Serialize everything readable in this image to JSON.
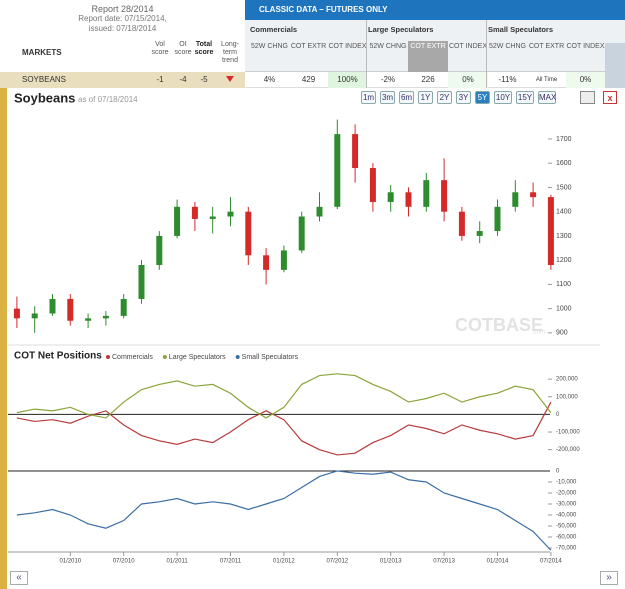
{
  "report": {
    "title": "Report 28/2014",
    "date": "Report date: 07/15/2014,",
    "issued": "issued: 07/18/2014"
  },
  "table": {
    "markets": "MARKETS",
    "left_headers": [
      "Vol score",
      "OI score",
      "Total score",
      "Long-term trend"
    ],
    "banner": "CLASSIC DATA – FUTURES ONLY",
    "groups": [
      "Commercials",
      "Large Speculators",
      "Small Speculators"
    ],
    "col_headers": [
      "52W CHNG",
      "COT EXTR",
      "COT INDEX",
      "52W CHNG",
      "COT EXTR",
      "COT INDEX",
      "52W CHNG",
      "COT EXTR",
      "COT INDEX"
    ],
    "row": {
      "market": "SOYBEANS",
      "scores": [
        "-1",
        "-4",
        "-5"
      ],
      "cells": [
        "4%",
        "429",
        "100%",
        "-2%",
        "226",
        "0%",
        "-11%",
        "All Time",
        "0%"
      ]
    }
  },
  "price_chart": {
    "type": "candlestick",
    "title": "Soybeans",
    "subtitle": "as of 07/18/2014",
    "ranges": [
      "1m",
      "3m",
      "6m",
      "1Y",
      "2Y",
      "3Y",
      "5Y",
      "10Y",
      "15Y",
      "MAX"
    ],
    "active_range": "5Y",
    "close_button": "x",
    "watermark": "COTBASE",
    "watermark_suffix": ".com",
    "up_color": "#2e8b2e",
    "down_color": "#d42a2a",
    "ylim": [
      850,
      1840
    ],
    "yticks": [
      900,
      1000,
      1100,
      1200,
      1300,
      1400,
      1500,
      1600,
      1700
    ],
    "candles": [
      [
        1000,
        1050,
        920,
        960
      ],
      [
        960,
        1010,
        900,
        980
      ],
      [
        980,
        1060,
        970,
        1040
      ],
      [
        1040,
        1060,
        930,
        950
      ],
      [
        950,
        980,
        920,
        960
      ],
      [
        960,
        990,
        930,
        970
      ],
      [
        970,
        1060,
        960,
        1040
      ],
      [
        1040,
        1200,
        1020,
        1180
      ],
      [
        1180,
        1320,
        1160,
        1300
      ],
      [
        1300,
        1450,
        1290,
        1420
      ],
      [
        1420,
        1440,
        1320,
        1370
      ],
      [
        1370,
        1420,
        1310,
        1380
      ],
      [
        1380,
        1460,
        1340,
        1400
      ],
      [
        1400,
        1420,
        1180,
        1220
      ],
      [
        1220,
        1250,
        1100,
        1160
      ],
      [
        1160,
        1260,
        1150,
        1240
      ],
      [
        1240,
        1400,
        1230,
        1380
      ],
      [
        1380,
        1480,
        1360,
        1420
      ],
      [
        1420,
        1780,
        1410,
        1720
      ],
      [
        1720,
        1760,
        1520,
        1580
      ],
      [
        1580,
        1600,
        1400,
        1440
      ],
      [
        1440,
        1510,
        1400,
        1480
      ],
      [
        1480,
        1500,
        1380,
        1420
      ],
      [
        1420,
        1560,
        1400,
        1530
      ],
      [
        1530,
        1620,
        1360,
        1400
      ],
      [
        1400,
        1420,
        1280,
        1300
      ],
      [
        1300,
        1360,
        1270,
        1320
      ],
      [
        1320,
        1450,
        1300,
        1420
      ],
      [
        1420,
        1530,
        1400,
        1480
      ],
      [
        1480,
        1520,
        1420,
        1460
      ],
      [
        1460,
        1470,
        1160,
        1180
      ]
    ]
  },
  "cot_chart": {
    "type": "line",
    "title": "COT Net Positions",
    "xticks": [
      "01/2010",
      "07/2010",
      "01/2011",
      "07/2011",
      "01/2012",
      "07/2012",
      "01/2013",
      "07/2013",
      "01/2014",
      "07/2014"
    ],
    "ylim": [
      -270000,
      280000
    ],
    "yticks": [
      {
        "value": 200000,
        "label": "200,000"
      },
      {
        "value": 100000,
        "label": "100,000"
      },
      0,
      {
        "value": -100000,
        "label": "-100,000"
      },
      {
        "value": -200000,
        "label": "-200,000"
      }
    ],
    "y2lim": [
      -73600,
      3600
    ],
    "y2ticks": [
      0,
      {
        "value": -10000,
        "label": "-10,000"
      },
      {
        "value": -20000,
        "label": "-20,000"
      },
      {
        "value": -30000,
        "label": "-30,000"
      },
      {
        "value": -40000,
        "label": "-40,000"
      },
      {
        "value": -50000,
        "label": "-50,000"
      },
      {
        "value": -60000,
        "label": "-60,000"
      },
      {
        "value": -70000,
        "label": "-70,000"
      }
    ],
    "series": [
      {
        "name": "Commercials",
        "color": "#b83a3a",
        "values": [
          -20000,
          -40000,
          -30000,
          -50000,
          -10000,
          20000,
          -60000,
          -120000,
          -150000,
          -170000,
          -140000,
          -160000,
          -100000,
          -30000,
          20000,
          -30000,
          -150000,
          -200000,
          -230000,
          -220000,
          -160000,
          -120000,
          -60000,
          -80000,
          -110000,
          -60000,
          -90000,
          -110000,
          -140000,
          -120000,
          70000
        ]
      },
      {
        "name": "Large Speculators",
        "color": "#8aa43a",
        "values": [
          10000,
          30000,
          20000,
          40000,
          0,
          -20000,
          70000,
          140000,
          170000,
          190000,
          160000,
          170000,
          120000,
          40000,
          -20000,
          40000,
          170000,
          220000,
          230000,
          220000,
          170000,
          130000,
          70000,
          90000,
          120000,
          70000,
          100000,
          120000,
          160000,
          140000,
          10000
        ]
      },
      {
        "name": "Small Speculators",
        "color": "#3a6ea5",
        "axis": "y2",
        "values": [
          -40000,
          -38000,
          -35000,
          -40000,
          -48000,
          -52000,
          -45000,
          -30000,
          -28000,
          -25000,
          -30000,
          -28000,
          -30000,
          -35000,
          -30000,
          -25000,
          -15000,
          -5000,
          0,
          -2000,
          -3000,
          -1000,
          -8000,
          -10000,
          -20000,
          -25000,
          -30000,
          -35000,
          -45000,
          -55000,
          -72000
        ]
      }
    ]
  },
  "nav": {
    "prev": "«",
    "next": "»"
  }
}
